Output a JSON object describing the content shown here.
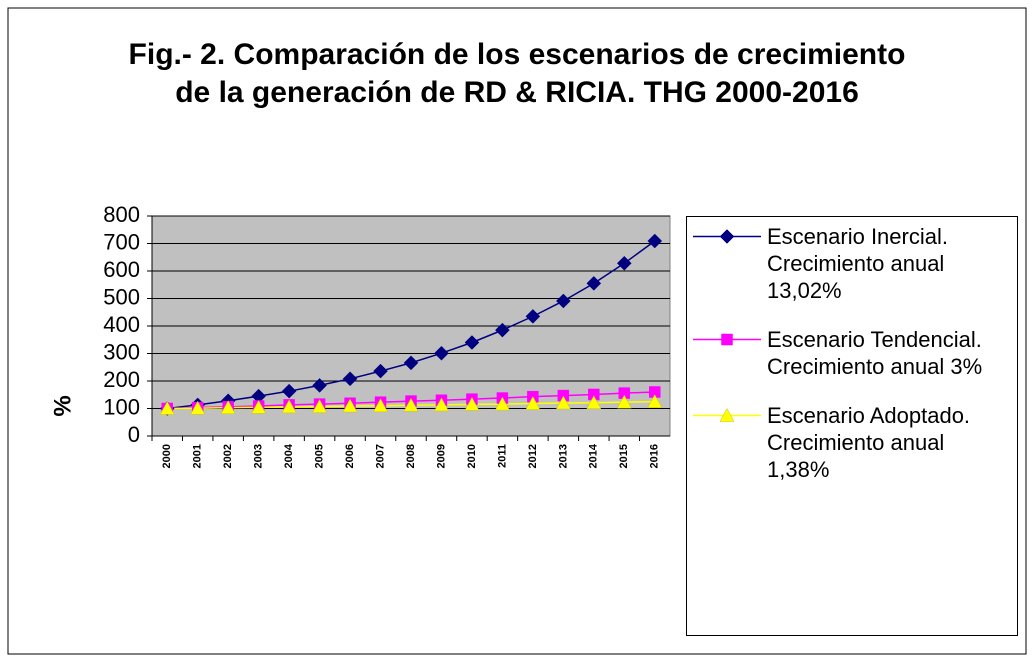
{
  "chart_data": {
    "type": "line",
    "title": "Fig.- 2. Comparación de los escenarios de crecimiento de la generación de RD & RICIA. THG 2000-2016",
    "y_label": "%",
    "categories": [
      "2000",
      "2001",
      "2002",
      "2003",
      "2004",
      "2005",
      "2006",
      "2007",
      "2008",
      "2009",
      "2010",
      "2011",
      "2012",
      "2013",
      "2014",
      "2015",
      "2016"
    ],
    "series": [
      {
        "name": "Escenario Inercial. Crecimiento anual 13,02%",
        "color": "#000080",
        "marker": "diamond",
        "values": [
          100,
          113,
          128,
          145,
          163,
          184,
          208,
          236,
          266,
          301,
          340,
          385,
          435,
          491,
          555,
          628,
          709
        ]
      },
      {
        "name": "Escenario Tendencial. Crecimiento anual 3%",
        "color": "#ff00ff",
        "marker": "square",
        "values": [
          100,
          103,
          106,
          109,
          113,
          116,
          119,
          123,
          127,
          130,
          134,
          138,
          143,
          147,
          151,
          156,
          160
        ]
      },
      {
        "name": "Escenario Adoptado. Crecimiento anual 1,38%",
        "color": "#ffff00",
        "marker": "triangle",
        "values": [
          100,
          101,
          103,
          104,
          106,
          107,
          109,
          110,
          112,
          113,
          115,
          116,
          118,
          120,
          121,
          123,
          125
        ]
      }
    ],
    "ylim": [
      0,
      800
    ],
    "yticks": [
      0,
      100,
      200,
      300,
      400,
      500,
      600,
      700,
      800
    ],
    "grid": true,
    "plot_background": "#c0c0c0",
    "legend": "right"
  }
}
